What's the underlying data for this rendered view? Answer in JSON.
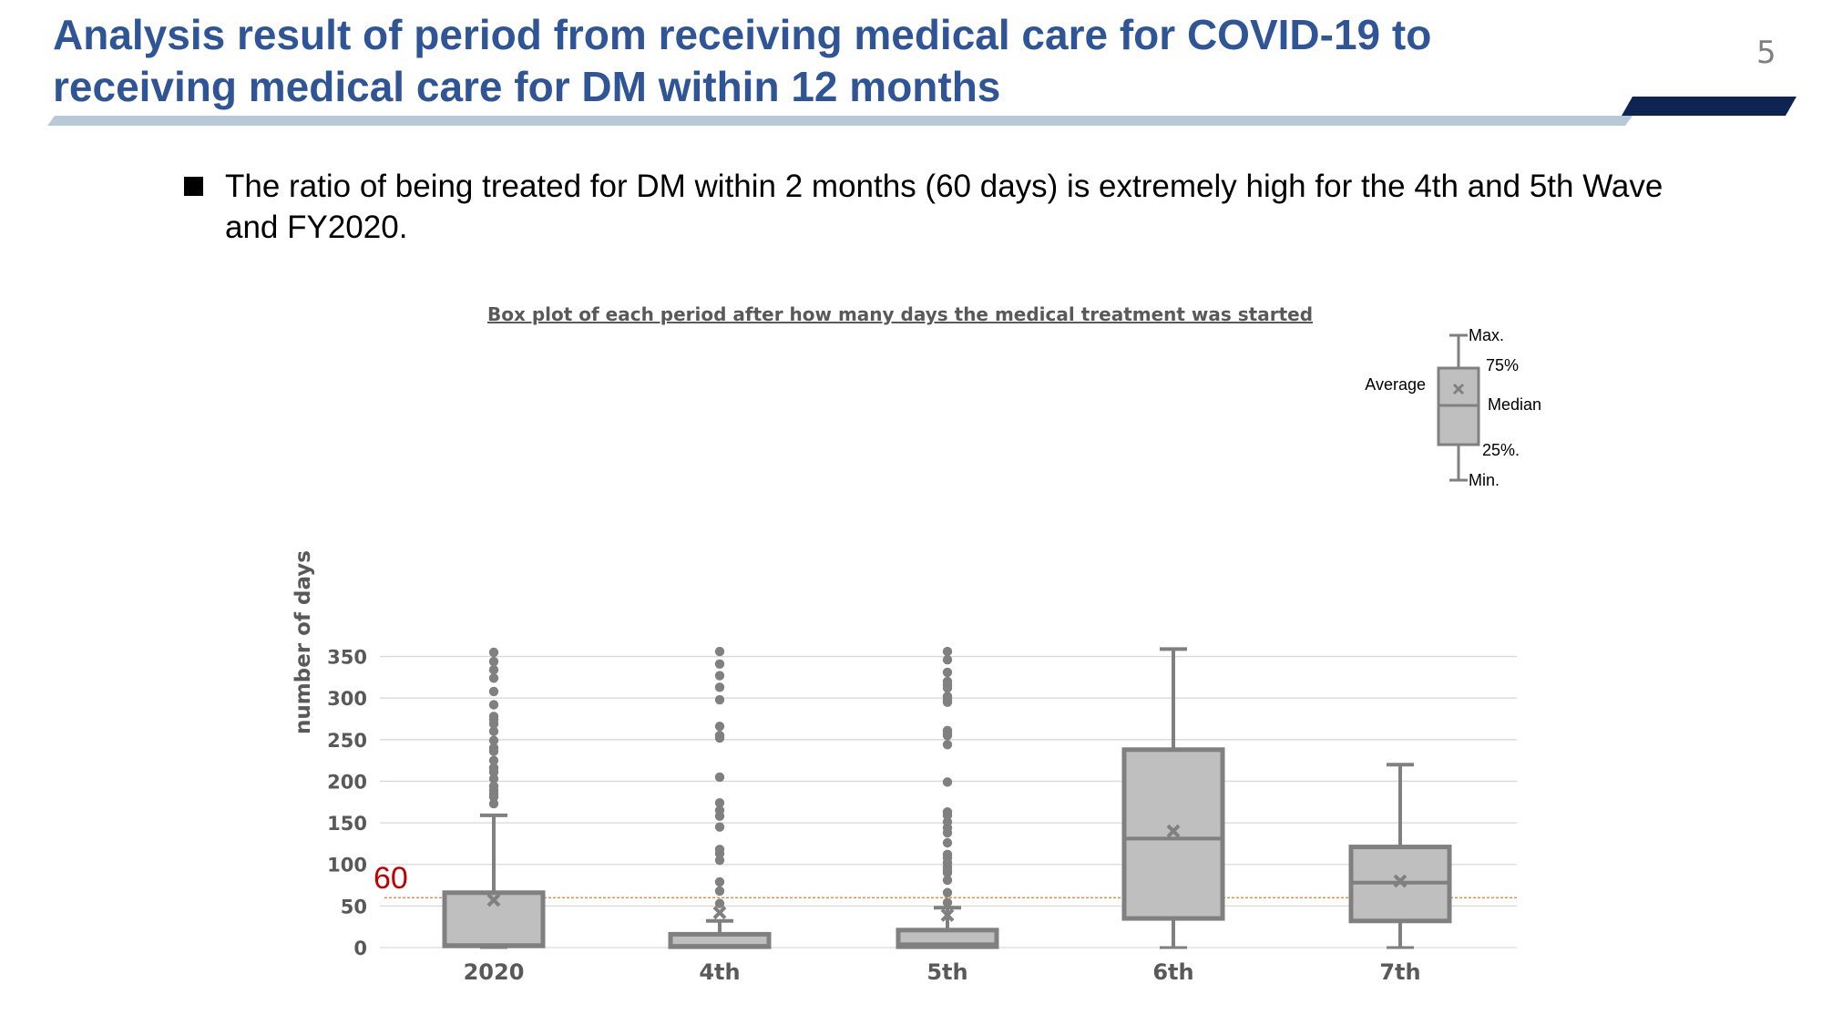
{
  "slide": {
    "title_line1": "Analysis result of period from receiving medical care for COVID-19 to",
    "title_line2": "receiving medical care for DM within 12 months",
    "page_number": "5",
    "bullet_text": "The ratio of being treated for DM within 2 months (60 days) is extremely high for the 4th and 5th Wave and FY2020."
  },
  "chart_data": {
    "type": "box",
    "title": "Box plot of each period after how many days the medical treatment was started",
    "ylabel": "number of days",
    "xlabel": "",
    "ylim": [
      0,
      365
    ],
    "yticks": [
      0,
      50,
      100,
      150,
      200,
      250,
      300,
      350
    ],
    "grid": true,
    "reference_line": {
      "value": 60,
      "label": "60",
      "color": "#e07a3c",
      "label_color": "#c00000"
    },
    "colors": {
      "box_fill": "#bfbfbf",
      "box_stroke": "#808080",
      "grid": "#d9d9d9"
    },
    "categories": [
      "2020",
      "4th",
      "5th",
      "6th",
      "7th"
    ],
    "boxes": [
      {
        "category": "2020",
        "min": 0,
        "q1": 2,
        "median": 3,
        "q3": 66,
        "max": 159,
        "mean": 57,
        "outliers": [
          355,
          344,
          334,
          324,
          308,
          292,
          278,
          274,
          269,
          260,
          249,
          240,
          236,
          225,
          216,
          211,
          203,
          194,
          189,
          185,
          181,
          173
        ]
      },
      {
        "category": "4th",
        "min": 0,
        "q1": 1,
        "median": 2,
        "q3": 16,
        "max": 32,
        "mean": 42,
        "outliers": [
          356,
          341,
          327,
          313,
          298,
          266,
          255,
          252,
          205,
          174,
          165,
          158,
          145,
          118,
          113,
          105,
          79,
          68,
          53
        ]
      },
      {
        "category": "5th",
        "min": 0,
        "q1": 1,
        "median": 4,
        "q3": 21,
        "max": 48,
        "mean": 39,
        "outliers": [
          356,
          346,
          331,
          320,
          316,
          312,
          302,
          298,
          295,
          261,
          258,
          255,
          244,
          199,
          163,
          159,
          151,
          144,
          138,
          126,
          112,
          108,
          102,
          97,
          93,
          90,
          81,
          66,
          54
        ]
      },
      {
        "category": "6th",
        "min": 0,
        "q1": 35,
        "median": 131,
        "q3": 238,
        "max": 359,
        "mean": 140,
        "outliers": []
      },
      {
        "category": "7th",
        "min": 0,
        "q1": 32,
        "median": 78,
        "q3": 121,
        "max": 220,
        "mean": 80,
        "outliers": []
      }
    ],
    "legend": {
      "position": "top-right",
      "max": "Max.",
      "q3": "75%",
      "average": "Average",
      "median": "Median",
      "q1": "25%.",
      "min": "Min."
    }
  }
}
